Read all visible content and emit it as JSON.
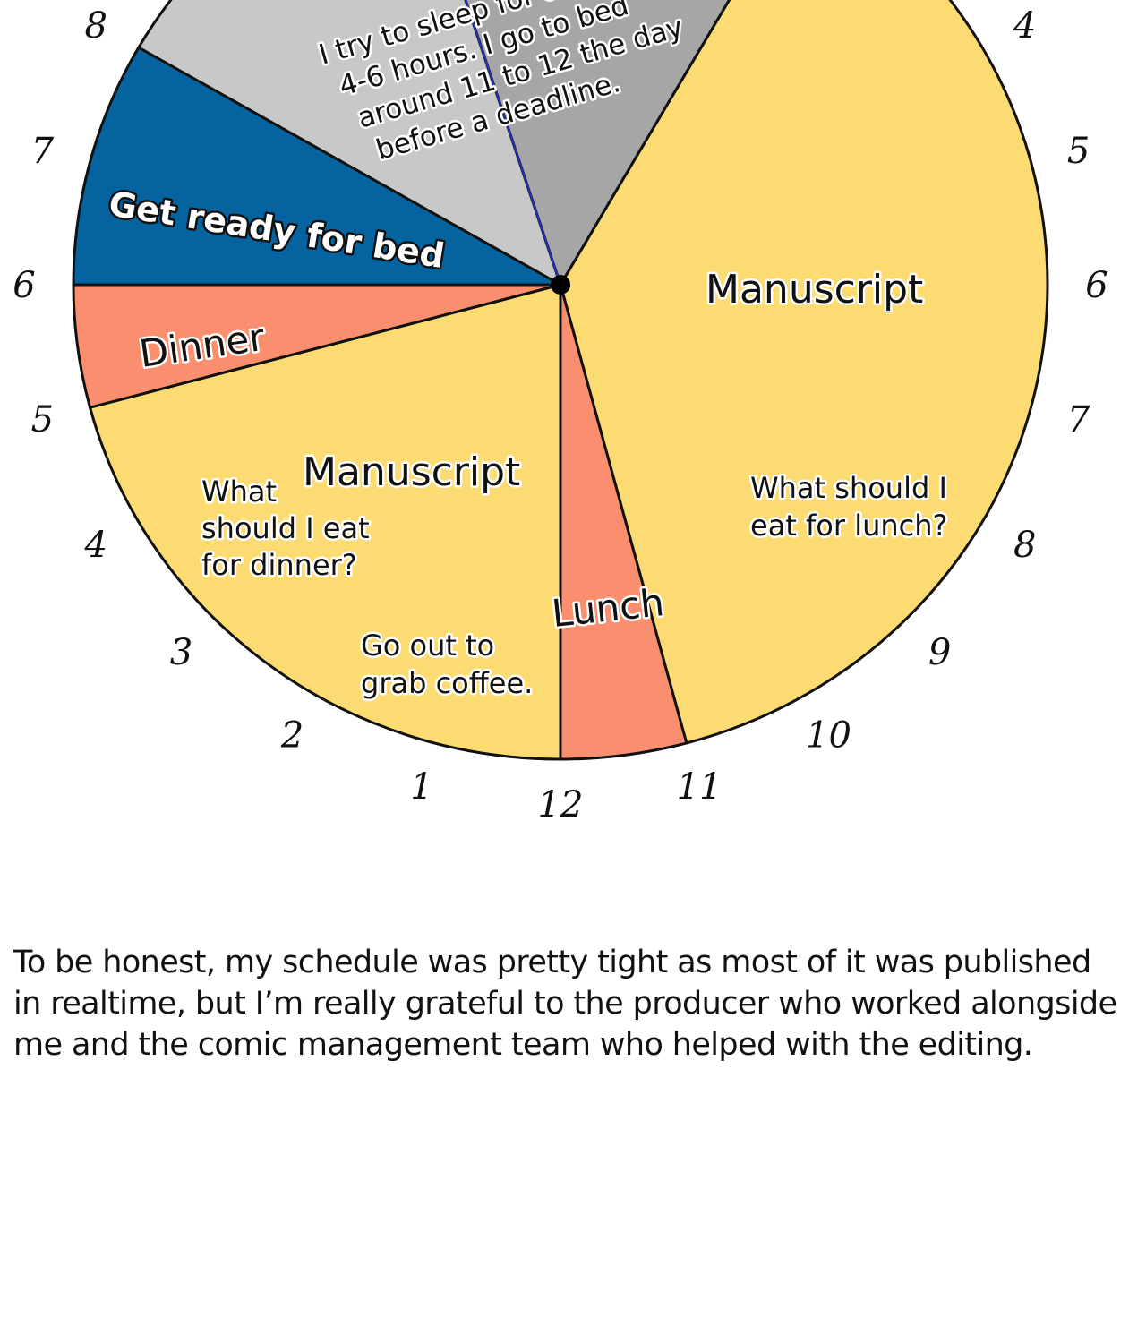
{
  "chart_data": {
    "type": "pie",
    "title": "",
    "clock": "24-hour, 12 noon at bottom, time runs clockwise",
    "slices": [
      {
        "label": "Manuscript",
        "start": 2,
        "end": 11,
        "color": "#fcdb73"
      },
      {
        "label": "Lunch",
        "start": 11,
        "end": 12,
        "color": "#f98f6f"
      },
      {
        "label": "Manuscript",
        "start": 12,
        "end": 17,
        "color": "#fcdb73"
      },
      {
        "label": "Dinner",
        "start": 17,
        "end": 18,
        "color": "#f98f6f"
      },
      {
        "label": "Get ready for bed",
        "start": 18,
        "end": 20,
        "color": "#0563a0"
      },
      {
        "label": "",
        "start": 20,
        "end": 22.8,
        "color": "#c8c8c8"
      },
      {
        "label": "",
        "start": 22.8,
        "end": 26,
        "color": "#a6a6a6"
      }
    ],
    "annotations": {
      "sleep": [
        "I try to sleep for a",
        "4-6 hours. I go to bed",
        "around 11 to 12 the day",
        "before a deadline."
      ],
      "lunch_note": [
        "What should I",
        "eat for lunch?"
      ],
      "dinner_note": [
        "What",
        "should I eat",
        "for dinner?"
      ],
      "coffee_note": [
        "Go out to",
        "grab coffee."
      ]
    },
    "tick_labels": [
      {
        "text": "12",
        "hour": 12
      },
      {
        "text": "1",
        "hour": 13
      },
      {
        "text": "2",
        "hour": 14
      },
      {
        "text": "3",
        "hour": 15
      },
      {
        "text": "4",
        "hour": 16
      },
      {
        "text": "5",
        "hour": 17
      },
      {
        "text": "6",
        "hour": 18
      },
      {
        "text": "7",
        "hour": 19
      },
      {
        "text": "8",
        "hour": 20
      },
      {
        "text": "4",
        "hour": 28
      },
      {
        "text": "5",
        "hour": 29
      },
      {
        "text": "6",
        "hour": 30
      },
      {
        "text": "7",
        "hour": 31
      },
      {
        "text": "8",
        "hour": 32
      },
      {
        "text": "9",
        "hour": 33
      },
      {
        "text": "10",
        "hour": 34
      },
      {
        "text": "11",
        "hour": 35
      }
    ]
  },
  "body_text": "To be honest, my schedule was pretty tight as most of it was published in realtime, but I’m really grateful to the producer who worked alongside me and the comic management team who helped with the editing."
}
